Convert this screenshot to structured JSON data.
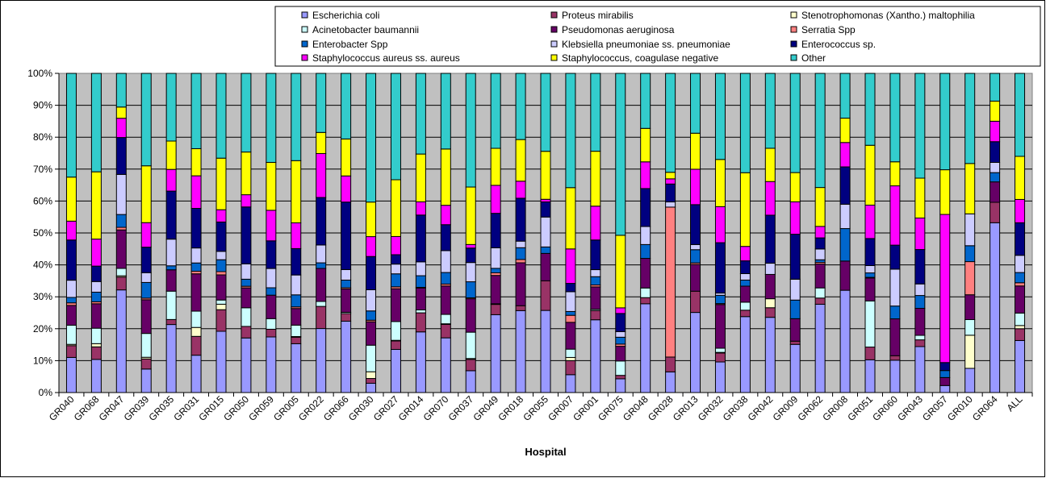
{
  "chart_data": {
    "type": "bar",
    "stacked": true,
    "percent": true,
    "title": "",
    "xlabel": "Hospital",
    "ylabel": "",
    "ylim": [
      0,
      100
    ],
    "yticks": [
      "0%",
      "10%",
      "20%",
      "30%",
      "40%",
      "50%",
      "60%",
      "70%",
      "80%",
      "90%",
      "100%"
    ],
    "grid": true,
    "legend_position": "top-right",
    "categories": [
      "GR040",
      "GR068",
      "GR047",
      "GR039",
      "GR035",
      "GR031",
      "GR015",
      "GR050",
      "GR059",
      "GR005",
      "GR022",
      "GR066",
      "GR030",
      "GR027",
      "GR014",
      "GR070",
      "GR037",
      "GR049",
      "GR018",
      "GR055",
      "GR007",
      "GR001",
      "GR075",
      "GR048",
      "GR028",
      "GR013",
      "GR032",
      "GR038",
      "GR042",
      "GR009",
      "GR062",
      "GR008",
      "GR051",
      "GR060",
      "GR043",
      "GR057",
      "GR010",
      "GR064",
      "ALL"
    ],
    "series": [
      {
        "name": "Escherichia coli",
        "color": "#9999ff",
        "values": [
          11.0,
          10.3,
          32.0,
          7.2,
          20.4,
          11.7,
          19.0,
          17.0,
          17.3,
          15.0,
          19.4,
          22.4,
          2.9,
          13.3,
          18.8,
          17.5,
          6.8,
          24.2,
          25.0,
          25.5,
          5.6,
          22.8,
          4.4,
          27.6,
          6.0,
          24.9,
          9.6,
          23.7,
          23.5,
          15.0,
          27.0,
          31.5,
          10.3,
          10.1,
          14.3,
          2.2,
          7.6,
          53.2,
          16.3
        ]
      },
      {
        "name": "Proteus mirabilis",
        "color": "#993366",
        "values": [
          3.7,
          3.9,
          4.0,
          3.1,
          1.5,
          5.9,
          6.7,
          3.6,
          2.4,
          2.0,
          6.7,
          2.4,
          1.5,
          2.6,
          5.9,
          4.3,
          3.5,
          3.2,
          1.5,
          9.2,
          4.4,
          2.9,
          1.1,
          1.9,
          4.3,
          6.6,
          2.8,
          2.0,
          3.0,
          1.0,
          1.9,
          0.0,
          4.0,
          1.4,
          2.1,
          0.0,
          0.0,
          6.4,
          3.7
        ]
      },
      {
        "name": "Stenotrophomonas (Xantho.) maltophilia",
        "color": "#ffffcc",
        "values": [
          0.4,
          1.0,
          0.4,
          0.5,
          0.0,
          2.8,
          1.7,
          0.0,
          0.0,
          0.2,
          0.0,
          0.0,
          2.1,
          0.2,
          0.0,
          0.2,
          0.3,
          0.0,
          0.0,
          0.0,
          1.0,
          0.0,
          0.0,
          0.0,
          0.0,
          0.0,
          0.2,
          0.0,
          2.8,
          0.0,
          0.0,
          0.0,
          0.0,
          0.0,
          0.0,
          0.0,
          10.4,
          0.0,
          1.0
        ]
      },
      {
        "name": "Acinetobacter baumannii",
        "color": "#ccffff",
        "values": [
          6.0,
          4.8,
          2.3,
          7.3,
          8.5,
          5.1,
          1.3,
          5.8,
          3.3,
          3.5,
          1.5,
          0.4,
          8.3,
          5.8,
          0.9,
          3.0,
          8.2,
          0.2,
          0.0,
          0.0,
          2.6,
          0.4,
          4.6,
          3.0,
          0.0,
          0.0,
          1.3,
          2.5,
          0.0,
          0.0,
          3.1,
          0.0,
          14.5,
          0.0,
          1.4,
          0.0,
          4.9,
          0.0,
          3.9
        ]
      },
      {
        "name": "Pseudomonas aeruginosa",
        "color": "#660066",
        "values": [
          6.2,
          7.6,
          12.0,
          10.3,
          6.4,
          11.7,
          7.8,
          6.2,
          7.3,
          5.1,
          10.0,
          7.3,
          7.3,
          10.1,
          6.8,
          9.1,
          10.4,
          8.8,
          13.1,
          8.5,
          8.4,
          7.0,
          4.7,
          9.2,
          0.0,
          8.3,
          13.7,
          5.0,
          7.6,
          7.0,
          7.3,
          9.0,
          7.2,
          11.5,
          8.4,
          2.5,
          7.8,
          6.4,
          8.5
        ]
      },
      {
        "name": "Serratia Spp",
        "color": "#ff8080",
        "values": [
          0.8,
          0.6,
          0.8,
          0.5,
          0.0,
          0.8,
          1.0,
          0.5,
          0.0,
          0.5,
          0.0,
          0.4,
          0.5,
          0.6,
          0.2,
          0.6,
          0.3,
          0.8,
          1.0,
          0.0,
          2.2,
          0.6,
          0.7,
          0.0,
          43.5,
          0.5,
          0.3,
          0.0,
          0.0,
          0.0,
          0.5,
          0.0,
          0.2,
          0.0,
          0.0,
          0.0,
          10.4,
          0.0,
          1.0
        ]
      },
      {
        "name": "Enterobacter Spp",
        "color": "#0066cc",
        "values": [
          1.7,
          3.0,
          4.0,
          4.8,
          1.2,
          2.6,
          3.7,
          2.2,
          2.3,
          3.7,
          1.7,
          2.4,
          2.9,
          4.0,
          3.6,
          3.7,
          5.0,
          1.4,
          3.6,
          2.0,
          1.2,
          2.6,
          2.2,
          4.3,
          0.0,
          4.1,
          2.6,
          1.9,
          0.0,
          5.8,
          0.8,
          10.0,
          1.4,
          4.0,
          4.0,
          2.2,
          5.0,
          2.9,
          3.2
        ]
      },
      {
        "name": "Klebsiella pneumoniae ss. pneumoniae",
        "color": "#ccccff",
        "values": [
          5.4,
          3.3,
          12.5,
          3.0,
          8.0,
          4.7,
          2.6,
          4.8,
          6.0,
          6.1,
          5.4,
          3.3,
          6.6,
          3.0,
          4.3,
          7.0,
          6.0,
          6.4,
          2.0,
          9.3,
          6.2,
          2.2,
          1.8,
          5.6,
          1.5,
          1.6,
          0.7,
          2.0,
          3.5,
          6.5,
          3.3,
          7.5,
          2.3,
          11.5,
          3.6,
          0.0,
          10.0,
          3.2,
          5.4
        ]
      },
      {
        "name": "Enterococcus sp.",
        "color": "#000080",
        "values": [
          12.6,
          4.8,
          11.5,
          7.8,
          14.4,
          12.4,
          9.1,
          17.7,
          8.6,
          8.1,
          14.4,
          21.2,
          10.4,
          2.9,
          14.5,
          8.3,
          4.5,
          10.7,
          13.1,
          4.7,
          2.6,
          9.3,
          5.8,
          11.8,
          5.2,
          12.4,
          15.8,
          4.0,
          15.0,
          14.0,
          3.4,
          11.5,
          8.5,
          7.5,
          10.7,
          2.5,
          0.0,
          6.5,
          10.2
        ]
      },
      {
        "name": "Staphylococcus aureus ss. aureus",
        "color": "#ff00ff",
        "values": [
          5.9,
          8.4,
          6.0,
          7.5,
          6.5,
          10.2,
          3.8,
          3.8,
          9.5,
          7.9,
          13.3,
          8.2,
          6.2,
          5.6,
          4.1,
          6.2,
          1.1,
          8.7,
          5.2,
          0.8,
          10.8,
          10.6,
          1.8,
          8.3,
          1.5,
          11.0,
          11.3,
          4.5,
          10.5,
          10.1,
          3.5,
          7.5,
          10.5,
          18.5,
          9.8,
          46.4,
          0.0,
          6.4,
          7.3
        ]
      },
      {
        "name": "Staphylococcus, coagulase negative",
        "color": "#ffff00",
        "values": [
          13.8,
          20.9,
          3.5,
          17.4,
          8.5,
          8.5,
          16.0,
          13.3,
          14.9,
          19.1,
          6.4,
          11.6,
          10.8,
          17.5,
          14.8,
          18.0,
          17.9,
          11.5,
          12.7,
          14.9,
          19.2,
          17.2,
          23.2,
          10.4,
          1.9,
          11.2,
          14.8,
          23.0,
          10.4,
          9.1,
          11.9,
          7.5,
          18.8,
          7.5,
          12.4,
          14.0,
          15.8,
          6.3,
          13.5
        ]
      },
      {
        "name": "Other",
        "color": "#33cccc",
        "values": [
          32.5,
          30.6,
          10.5,
          28.3,
          20.3,
          23.6,
          26.3,
          24.5,
          27.7,
          26.8,
          17.9,
          20.6,
          40.2,
          32.8,
          25.0,
          24.2,
          35.4,
          23.3,
          20.2,
          24.2,
          35.8,
          24.4,
          51.8,
          17.1,
          28.7,
          18.6,
          27.0,
          31.0,
          23.4,
          30.9,
          34.9,
          13.8,
          22.6,
          27.6,
          32.6,
          30.2,
          28.3,
          8.7,
          26.0
        ]
      }
    ]
  }
}
